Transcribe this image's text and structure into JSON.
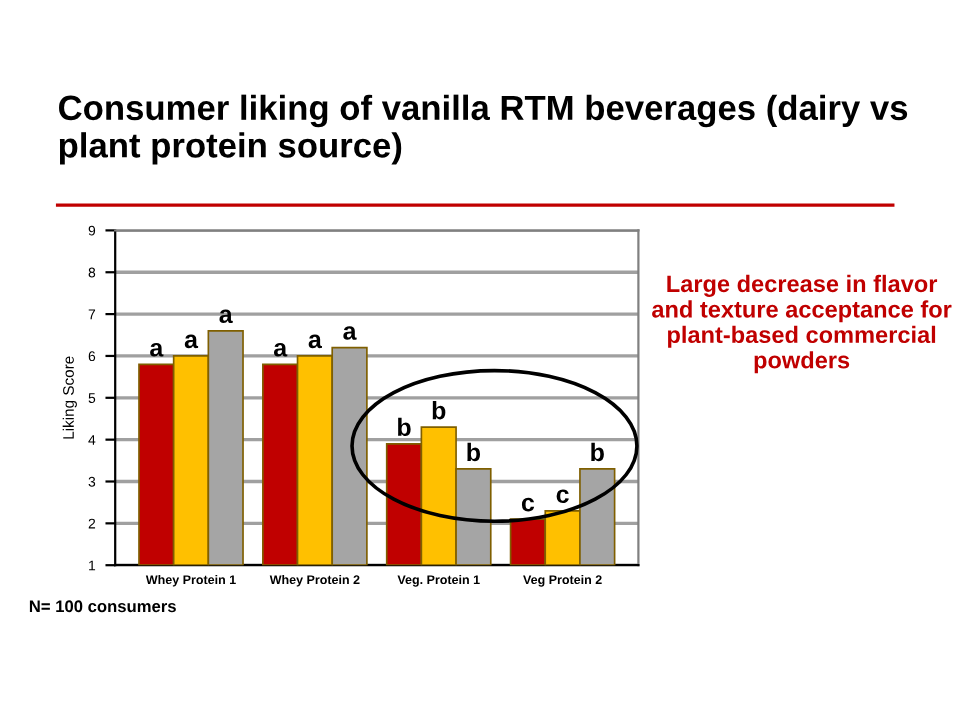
{
  "chart_data": {
    "type": "bar",
    "title": "Consumer liking of vanilla RTM beverages (dairy vs plant protein source)",
    "ylabel": "Liking Score",
    "categories": [
      "Whey Protein 1",
      "Whey Protein 2",
      "Veg. Protein 1",
      "Veg Protein 2"
    ],
    "series": [
      {
        "color": "#c00000",
        "values": [
          5.8,
          5.8,
          3.9,
          2.1
        ],
        "value_labels": [
          "a",
          "a",
          "b",
          "c"
        ]
      },
      {
        "color": "#ffc000",
        "values": [
          6.0,
          6.0,
          4.3,
          2.3
        ],
        "value_labels": [
          "a",
          "a",
          "b",
          "c"
        ]
      },
      {
        "color": "#a5a5a5",
        "values": [
          6.6,
          6.2,
          3.3,
          3.3
        ],
        "value_labels": [
          "a",
          "a",
          "b",
          "b"
        ]
      }
    ],
    "ylim": [
      1,
      9
    ],
    "yticks": [
      1,
      2,
      3,
      4,
      5,
      6,
      7,
      8,
      9
    ],
    "grid": "y",
    "legend": false,
    "annotations": [
      "Large decrease in flavor and texture acceptance for plant-based commercial powders",
      "N= 100 consumers"
    ]
  }
}
